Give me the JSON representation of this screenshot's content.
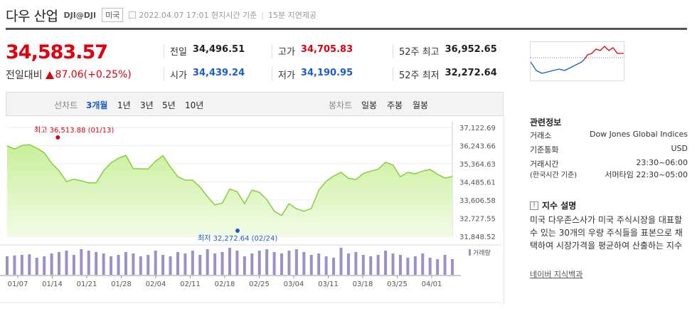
{
  "header": {
    "name": "다우 산업",
    "code": "DJI@DJI",
    "market": "미국",
    "datetime": "2022.04.07 17:01",
    "basis": "현지시간 기준",
    "delay": "15분 지연제공"
  },
  "quote": {
    "price": "34,583.57",
    "change_label": "전일대비",
    "change": "87.06",
    "change_pct": "(+0.25%)"
  },
  "stats": {
    "prev_label": "전일",
    "prev": "34,496.51",
    "open_label": "시가",
    "open": "34,439.24",
    "high_label": "고가",
    "high": "34,705.83",
    "low_label": "저가",
    "low": "34,190.95",
    "w52h_label": "52주 최고",
    "w52h": "36,952.65",
    "w52l_label": "52주 최저",
    "w52l": "32,272.64"
  },
  "tabs": {
    "line_label": "선차트",
    "m3": "3개월",
    "y1": "1년",
    "y3": "3년",
    "y5": "5년",
    "y10": "10년",
    "candle_label": "봉차트",
    "day": "일봉",
    "week": "주봉",
    "month": "월봉"
  },
  "chart_data": {
    "type": "area",
    "y_ticks": [
      "37,122.69",
      "36,243.66",
      "35,364.63",
      "34,485.61",
      "33,606.58",
      "32,727.55",
      "31,848.52"
    ],
    "ylim": [
      31848.52,
      37122.69
    ],
    "x_ticks": [
      "01/07",
      "01/14",
      "01/21",
      "01/28",
      "02/04",
      "02/11",
      "02/18",
      "02/25",
      "03/04",
      "03/11",
      "03/18",
      "03/25",
      "04/01"
    ],
    "high_annotation": "최고 36,513.88 (01/13)",
    "low_annotation": "최저 32,272.64 (02/24)",
    "volume_label": "거래량",
    "values": [
      36230,
      36080,
      36250,
      36290,
      36120,
      35900,
      35390,
      35030,
      34500,
      34620,
      34540,
      34440,
      34440,
      35030,
      35410,
      35630,
      35770,
      35130,
      35120,
      35110,
      35490,
      35760,
      35210,
      34740,
      34570,
      34570,
      34240,
      33770,
      33370,
      33460,
      34140,
      34010,
      33430,
      34090,
      33980,
      33630,
      33070,
      32860,
      33430,
      33180,
      33070,
      33200,
      34080,
      34520,
      34770,
      34950,
      34660,
      34600,
      34890,
      35010,
      35100,
      35440,
      35300,
      34740,
      34950,
      34880,
      35010,
      35090,
      34860,
      34670,
      34750
    ],
    "volume": [
      6.5,
      6.8,
      7.0,
      7.2,
      6.0,
      6.5,
      7.5,
      8.0,
      8.5,
      7.0,
      9.0,
      8.5,
      8.0,
      7.5,
      6.5,
      7.0,
      8.0,
      7.5,
      6.5,
      7.0,
      8.5,
      7.0,
      6.5,
      8.0,
      7.5,
      8.5,
      7.0,
      9.0,
      7.5,
      8.0,
      9.5,
      8.5,
      6.5,
      7.5,
      8.5,
      9.0,
      8.0,
      7.5,
      8.5,
      9.0,
      8.0,
      7.0,
      7.5,
      6.5,
      6.0,
      9.5,
      7.5,
      8.0,
      7.0,
      6.5,
      7.0,
      8.5,
      7.5,
      7.0,
      6.0,
      6.5,
      7.5,
      6.0,
      5.5,
      7.0,
      5.5
    ]
  },
  "info": {
    "title": "관련정보",
    "exchange_label": "거래소",
    "exchange": "Dow Jones Global Indices",
    "currency_label": "기준통화",
    "currency": "USD",
    "hours_label": "거래시간",
    "hours_sub": "(한국시간 기준)",
    "hours1": "23:30~06:00",
    "hours2": "서머타임 22:30~05:00",
    "about_title": "지수 설명",
    "about_text": "미국 다우존스사가 미국 주식시장을 대표할 수 있는 30개의 우량 주식들을 표본으로 채택하여 시장가격을 평균하여 산출하는 지수",
    "source": "네이버 지식백과"
  }
}
